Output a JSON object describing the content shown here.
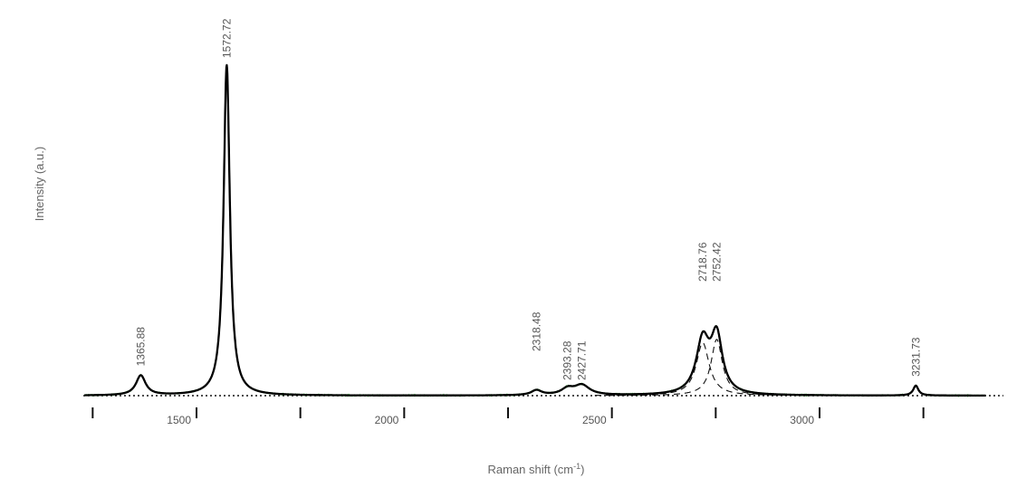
{
  "chart_data": {
    "type": "line",
    "title": "",
    "xlabel_main": "Raman shift (cm",
    "xlabel_sup": "-1",
    "xlabel_close": ")",
    "ylabel": "Intensity (a.u.)",
    "xlim": [
      1230,
      3400
    ],
    "ylim": [
      0,
      100
    ],
    "x_tick_labels": [
      {
        "value": 1500,
        "text": "1500"
      },
      {
        "value": 2000,
        "text": "2000"
      },
      {
        "value": 2500,
        "text": "2500"
      },
      {
        "value": 3000,
        "text": "3000"
      }
    ],
    "x_tick_marks": [
      1250,
      1500,
      1750,
      2000,
      2250,
      2500,
      2750,
      3000,
      3250
    ],
    "peaks_fitted": [
      {
        "center": 1365.88,
        "height": 6,
        "width": 28
      },
      {
        "center": 1572.72,
        "height": 100,
        "width": 18
      },
      {
        "center": 2318.48,
        "height": 1.5,
        "width": 30
      },
      {
        "center": 2393.28,
        "height": 1.8,
        "width": 35
      },
      {
        "center": 2427.71,
        "height": 3,
        "width": 45
      },
      {
        "center": 2718.76,
        "height": 16,
        "width": 38
      },
      {
        "center": 2752.42,
        "height": 17,
        "width": 33
      },
      {
        "center": 3231.73,
        "height": 3,
        "width": 15
      }
    ],
    "dashed_components": [
      {
        "center": 2718.76,
        "height": 16,
        "width": 38
      },
      {
        "center": 2752.42,
        "height": 17,
        "width": 33
      }
    ],
    "peak_labels": [
      {
        "x": 1365.88,
        "text": "1365.88"
      },
      {
        "x": 1572.72,
        "text": "1572.72"
      },
      {
        "x": 2318.48,
        "text": "2318.48"
      },
      {
        "x": 2393.28,
        "text": "2393.28"
      },
      {
        "x": 2427.71,
        "text": "2427.71"
      },
      {
        "x": 2718.76,
        "text": "2718.76"
      },
      {
        "x": 2752.42,
        "text": "2752.42"
      },
      {
        "x": 3231.73,
        "text": "3231.73"
      }
    ],
    "series": [
      {
        "role": "measured",
        "color": "#22cc22"
      },
      {
        "role": "fit",
        "color": "#000000"
      },
      {
        "role": "components",
        "color": "#111111",
        "style": "dashed"
      },
      {
        "role": "baseline",
        "color": "#111111",
        "style": "dotted"
      }
    ]
  }
}
